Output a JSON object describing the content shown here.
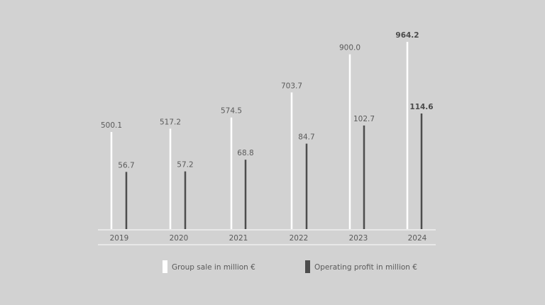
{
  "chart_data": {
    "type": "bar",
    "categories": [
      "2019",
      "2020",
      "2021",
      "2022",
      "2023",
      "2024"
    ],
    "series": [
      {
        "name": "Group sale in million €",
        "color": "#ffffff",
        "values": [
          500.1,
          517.2,
          574.5,
          703.7,
          900.0,
          964.2
        ],
        "labels": [
          "500.1",
          "517.2",
          "574.5",
          "703.7",
          "900.0",
          "964.2"
        ]
      },
      {
        "name": "Operating profit in million €",
        "color": "#4d4d4d",
        "values": [
          56.7,
          57.2,
          68.8,
          84.7,
          102.7,
          114.6
        ],
        "labels": [
          "56.7",
          "57.2",
          "68.8",
          "84.7",
          "102.7",
          "114.6"
        ]
      }
    ],
    "highlight_category": "2024",
    "legend_position": "bottom",
    "grid": false
  }
}
